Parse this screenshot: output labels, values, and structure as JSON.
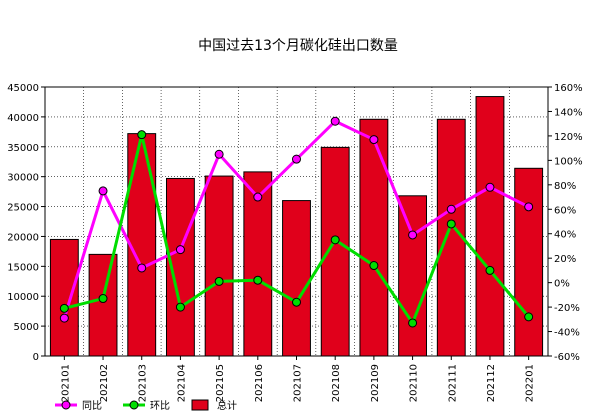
{
  "chart_data": {
    "type": "bar",
    "title": "中国过去13个月碳化硅出口数量",
    "categories": [
      "202101",
      "202102",
      "202103",
      "202104",
      "202105",
      "202106",
      "202107",
      "202108",
      "202109",
      "202110",
      "202111",
      "202112",
      "202201"
    ],
    "series": [
      {
        "name": "总计",
        "type": "bar",
        "axis": "left",
        "color": "#e0001b",
        "values": [
          19500,
          17000,
          37200,
          29700,
          30100,
          30800,
          26000,
          34900,
          39600,
          26800,
          39600,
          43400,
          31400
        ]
      },
      {
        "name": "同比",
        "type": "line",
        "axis": "right",
        "color": "#ff00ff",
        "values": [
          -29,
          75,
          12,
          27,
          105,
          70,
          101,
          132,
          117,
          39,
          60,
          78,
          62
        ]
      },
      {
        "name": "环比",
        "type": "line",
        "axis": "right",
        "color": "#00dd00",
        "values": [
          -21,
          -13,
          121,
          -20,
          1,
          2,
          -16,
          35,
          14,
          -33,
          48,
          10,
          -28
        ]
      }
    ],
    "left_axis": {
      "min": 0,
      "max": 45000,
      "step": 5000,
      "ticks": [
        "0",
        "5000",
        "10000",
        "15000",
        "20000",
        "25000",
        "30000",
        "35000",
        "40000",
        "45000"
      ]
    },
    "right_axis": {
      "min": -60,
      "max": 160,
      "step": 20,
      "ticks": [
        "-60%",
        "-40%",
        "-20%",
        "0%",
        "20%",
        "40%",
        "60%",
        "80%",
        "100%",
        "120%",
        "140%",
        "160%"
      ]
    },
    "grid": true,
    "legend_position": "bottom-left",
    "legend": [
      {
        "label": "同比",
        "kind": "line",
        "color": "#ff00ff"
      },
      {
        "label": "环比",
        "kind": "line",
        "color": "#00dd00"
      },
      {
        "label": "总计",
        "kind": "bar",
        "color": "#e0001b"
      }
    ]
  }
}
